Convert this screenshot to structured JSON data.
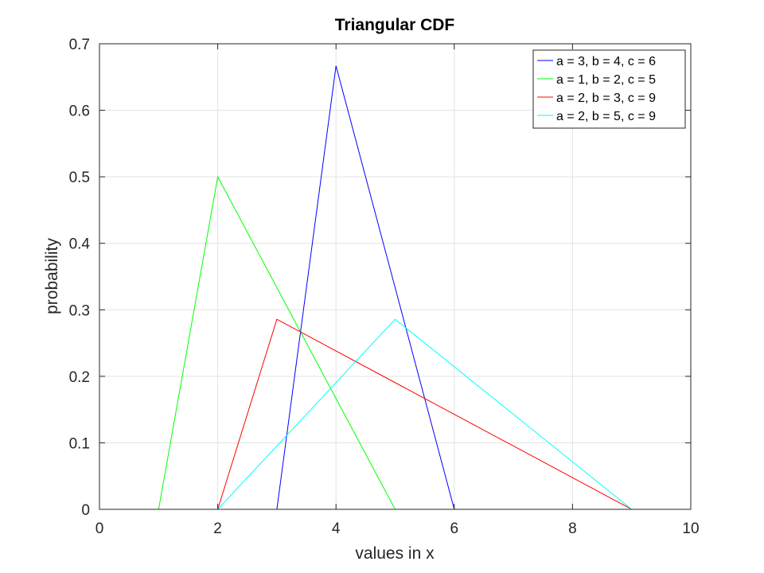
{
  "chart_data": {
    "type": "line",
    "title": "Triangular CDF",
    "xlabel": "values in x",
    "ylabel": "probability",
    "xlim": [
      0,
      10
    ],
    "ylim": [
      0,
      0.7
    ],
    "xticks": [
      0,
      2,
      4,
      6,
      8,
      10
    ],
    "yticks": [
      0,
      0.1,
      0.2,
      0.3,
      0.4,
      0.5,
      0.6,
      0.7
    ],
    "xtick_labels": [
      "0",
      "2",
      "4",
      "6",
      "8",
      "10"
    ],
    "ytick_labels": [
      "0",
      "0.1",
      "0.2",
      "0.3",
      "0.4",
      "0.5",
      "0.6",
      "0.7"
    ],
    "grid": true,
    "legend_position": "top-right",
    "series": [
      {
        "name": "a = 3, b = 4, c = 6",
        "color": "#0000ff",
        "x": [
          0,
          3,
          4,
          6,
          10
        ],
        "y": [
          0,
          0,
          0.6667,
          0,
          0
        ]
      },
      {
        "name": "a = 1, b = 2, c = 5",
        "color": "#00ff00",
        "x": [
          0,
          1,
          2,
          5,
          10
        ],
        "y": [
          0,
          0,
          0.5,
          0,
          0
        ]
      },
      {
        "name": "a = 2, b = 3, c = 9",
        "color": "#ff0000",
        "x": [
          0,
          2,
          3,
          9,
          10
        ],
        "y": [
          0,
          0,
          0.2857,
          0,
          0
        ]
      },
      {
        "name": "a = 2, b = 5, c = 9",
        "color": "#00ffff",
        "x": [
          0,
          2,
          5,
          9,
          10
        ],
        "y": [
          0,
          0,
          0.2857,
          0,
          0
        ]
      }
    ]
  }
}
